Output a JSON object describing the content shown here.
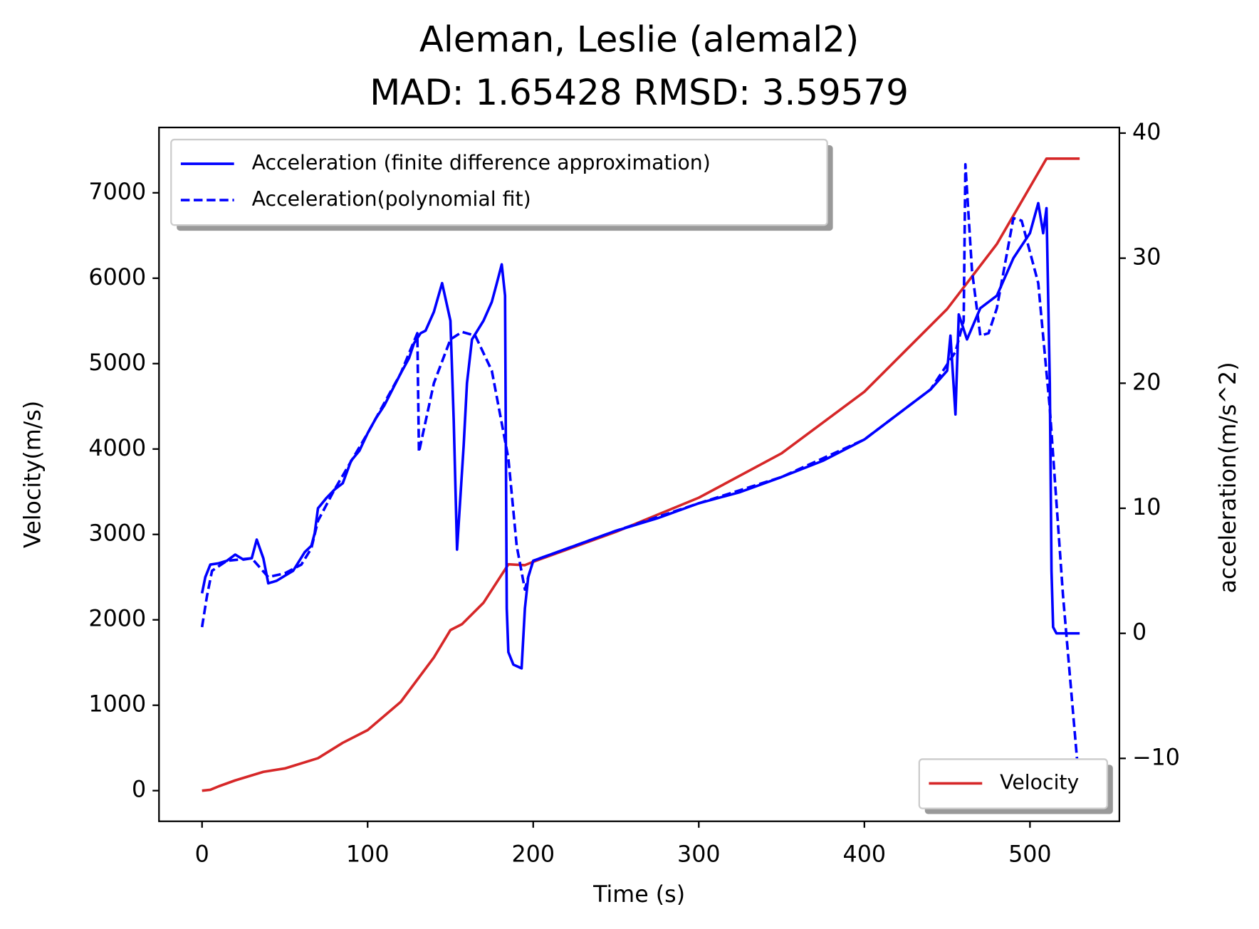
{
  "chart_data": {
    "type": "line",
    "title": "Aleman, Leslie (alemal2)",
    "subtitle": "MAD: 1.65428  RMSD: 3.59579",
    "xlabel": "Time (s)",
    "ylabel": "Velocity(m/s)",
    "y2label": "acceleration(m/s^2)",
    "ylabel_color": "#d62728",
    "y2label_color": "#0000ff",
    "xlim": [
      -26,
      554
    ],
    "ylim": [
      -359,
      7765
    ],
    "y2lim": [
      -15.03,
      40.45
    ],
    "xticks": [
      0,
      100,
      200,
      300,
      400,
      500
    ],
    "yticks": [
      0,
      1000,
      2000,
      3000,
      4000,
      5000,
      6000,
      7000
    ],
    "y2ticks": [
      {
        "value": -10,
        "label": "−10"
      },
      0,
      10,
      20,
      30,
      40
    ],
    "series": [
      {
        "name": "Velocity",
        "color": "#d62728",
        "style": "solid",
        "axis": "y",
        "legend": "lower right",
        "x": [
          0,
          5,
          10,
          20,
          37,
          50,
          70,
          85,
          100,
          120,
          140,
          150,
          157,
          170,
          185,
          195,
          200,
          250,
          300,
          350,
          400,
          450,
          480,
          510,
          530
        ],
        "values": [
          0,
          10,
          50,
          120,
          220,
          260,
          380,
          560,
          708,
          1040,
          1560,
          1880,
          1950,
          2200,
          2650,
          2640,
          2680,
          3030,
          3430,
          3950,
          4670,
          5640,
          6400,
          7400,
          7400
        ]
      },
      {
        "name": "Acceleration (finite difference approximation)",
        "color": "#0000ff",
        "style": "solid",
        "axis": "y2",
        "legend": "upper left",
        "x": [
          0,
          2,
          5,
          10,
          15,
          20,
          25,
          30,
          33,
          37,
          40,
          45,
          50,
          55,
          62,
          66,
          68,
          70,
          75,
          80,
          85,
          90,
          95,
          100,
          105,
          110,
          115,
          120,
          125,
          128,
          132,
          135,
          140,
          145,
          150,
          152,
          154,
          158,
          160,
          163,
          170,
          175,
          178,
          181,
          183,
          184,
          185,
          188,
          193,
          195,
          197,
          200,
          225,
          250,
          275,
          300,
          325,
          350,
          375,
          400,
          420,
          440,
          450,
          452,
          455,
          457,
          462,
          470,
          480,
          490,
          500,
          505,
          508,
          510,
          512,
          513,
          514,
          516,
          530
        ],
        "values": [
          3.2,
          4.5,
          5.5,
          5.6,
          5.8,
          6.3,
          5.9,
          6.0,
          7.5,
          6.0,
          4.0,
          4.2,
          4.6,
          5.0,
          6.5,
          7.0,
          8.0,
          10.0,
          10.8,
          11.5,
          12.0,
          13.8,
          14.6,
          16.0,
          17.2,
          18.2,
          19.5,
          20.8,
          22.0,
          23.2,
          24.0,
          24.2,
          25.7,
          28.0,
          25.0,
          17.0,
          6.7,
          15.0,
          20.0,
          23.5,
          25.0,
          26.5,
          28.0,
          29.5,
          27.0,
          2.0,
          -1.5,
          -2.5,
          -2.8,
          2.0,
          4.5,
          5.8,
          7.0,
          8.2,
          9.2,
          10.4,
          11.3,
          12.5,
          13.8,
          15.5,
          17.5,
          19.5,
          21.0,
          23.8,
          17.5,
          25.5,
          23.5,
          26.0,
          27.0,
          30.0,
          32.0,
          34.4,
          32.0,
          34.0,
          20.0,
          5.0,
          0.5,
          0.0,
          0.0
        ]
      },
      {
        "name": "Acceleration(polynomial fit)",
        "color": "#0000ff",
        "style": "dashed",
        "axis": "y2",
        "legend": "upper left",
        "x": [
          0,
          3,
          6,
          15,
          30,
          40,
          50,
          60,
          66,
          70,
          80,
          100,
          120,
          130,
          131,
          140,
          150,
          157,
          165,
          175,
          185,
          190,
          195,
          197,
          200,
          250,
          300,
          350,
          400,
          440,
          455,
          460,
          461,
          465,
          470,
          475,
          480,
          490,
          495,
          505,
          512,
          520,
          530
        ],
        "values": [
          0.5,
          3.0,
          5.0,
          5.8,
          6.0,
          4.5,
          4.8,
          5.5,
          6.8,
          9.0,
          11.5,
          16.0,
          20.8,
          24.0,
          14.5,
          20.0,
          23.5,
          24.1,
          23.8,
          21.0,
          14.0,
          7.0,
          3.5,
          4.5,
          5.8,
          8.2,
          10.4,
          12.5,
          15.5,
          19.5,
          22.5,
          25.0,
          37.5,
          29.0,
          23.8,
          24.0,
          26.0,
          33.2,
          33.0,
          28.0,
          18.0,
          3.0,
          -12.5
        ]
      }
    ]
  }
}
